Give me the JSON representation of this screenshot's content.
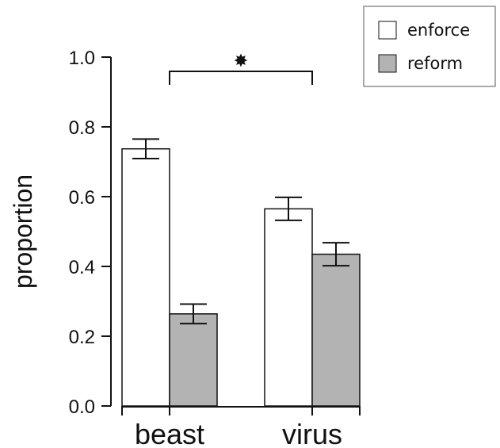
{
  "chart_data": {
    "type": "bar",
    "title": "",
    "xlabel": "",
    "ylabel": "proportion",
    "ylim": [
      0,
      1.0
    ],
    "yticks": [
      "0.0",
      "0.2",
      "0.4",
      "0.6",
      "0.8",
      "1.0"
    ],
    "categories": [
      "beast",
      "virus"
    ],
    "series": [
      {
        "name": "enforce",
        "color": "#ffffff",
        "values": [
          0.737,
          0.565
        ],
        "error": [
          0.028,
          0.033
        ]
      },
      {
        "name": "reform",
        "color": "#b3b3b3",
        "values": [
          0.264,
          0.435
        ],
        "error": [
          0.028,
          0.033
        ]
      }
    ],
    "legend": {
      "position": "top-right"
    },
    "grid": false,
    "annotation": {
      "symbol": "✸",
      "meaning": "significance bracket between beast and virus"
    }
  }
}
